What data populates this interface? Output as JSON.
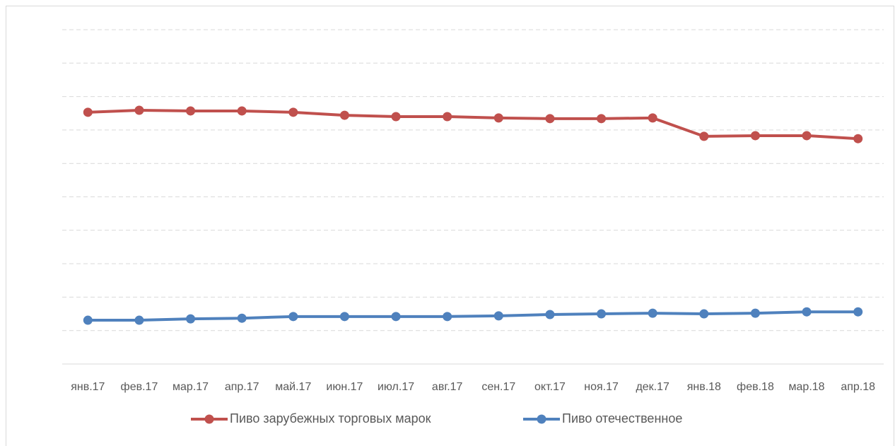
{
  "chart_data": {
    "type": "line",
    "categories": [
      "янв.17",
      "фев.17",
      "мар.17",
      "апр.17",
      "май.17",
      "июн.17",
      "июл.17",
      "авг.17",
      "сен.17",
      "окт.17",
      "ноя.17",
      "дек.17",
      "янв.18",
      "фев.18",
      "мар.18",
      "апр.18"
    ],
    "series": [
      {
        "name": "Пиво зарубежных торговых марок",
        "color": "#c0504d",
        "values": [
          7.53,
          7.59,
          7.57,
          7.57,
          7.53,
          7.44,
          7.4,
          7.4,
          7.36,
          7.34,
          7.34,
          7.36,
          6.81,
          6.83,
          6.83,
          6.74
        ]
      },
      {
        "name": "Пиво отечественное",
        "color": "#4f81bd",
        "values": [
          1.31,
          1.31,
          1.35,
          1.37,
          1.42,
          1.42,
          1.42,
          1.42,
          1.44,
          1.48,
          1.5,
          1.52,
          1.5,
          1.52,
          1.56,
          1.56
        ]
      }
    ],
    "ylim": [
      0,
      10
    ],
    "yticks": [
      1,
      2,
      3,
      4,
      5,
      6,
      7,
      8,
      9,
      10
    ],
    "grid": true,
    "legend": "bottom"
  }
}
